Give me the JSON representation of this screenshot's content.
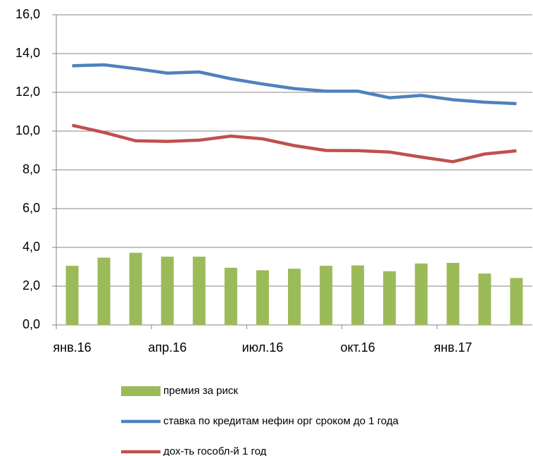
{
  "chart_data": {
    "type": "bar-line",
    "categories": [
      "янв.16",
      null,
      null,
      "апр.16",
      null,
      null,
      "июл.16",
      null,
      null,
      "окт.16",
      null,
      null,
      "янв.17",
      null,
      null
    ],
    "series": [
      {
        "name": "премия за риск",
        "type": "bar",
        "color": "#9bbb59",
        "values": [
          3.05,
          3.47,
          3.72,
          3.52,
          3.52,
          2.95,
          2.82,
          2.9,
          3.05,
          3.07,
          2.77,
          3.17,
          3.2,
          2.65,
          2.42
        ]
      },
      {
        "name": "ставка по кредитам нефин орг сроком до 1 года",
        "type": "line",
        "color": "#4f81bd",
        "values": [
          13.37,
          13.42,
          13.22,
          12.99,
          13.05,
          12.7,
          12.43,
          12.19,
          12.06,
          12.06,
          11.72,
          11.84,
          11.62,
          11.49,
          11.42
        ]
      },
      {
        "name": "дох-ть гособл-й 1 год",
        "type": "line",
        "color": "#c0504d",
        "values": [
          10.3,
          9.93,
          9.5,
          9.47,
          9.53,
          9.74,
          9.6,
          9.25,
          9.0,
          8.99,
          8.92,
          8.66,
          8.42,
          8.82,
          8.98
        ]
      }
    ],
    "ylim": [
      0,
      16
    ],
    "yticks": [
      {
        "value": 0,
        "label": "0,0"
      },
      {
        "value": 2,
        "label": "2,0"
      },
      {
        "value": 4,
        "label": "4,0"
      },
      {
        "value": 6,
        "label": "6,0"
      },
      {
        "value": 8,
        "label": "8,0"
      },
      {
        "value": 10,
        "label": "10,0"
      },
      {
        "value": 12,
        "label": "12,0"
      },
      {
        "value": 14,
        "label": "14,0"
      },
      {
        "value": 16,
        "label": "16,0"
      }
    ],
    "grid": true
  }
}
